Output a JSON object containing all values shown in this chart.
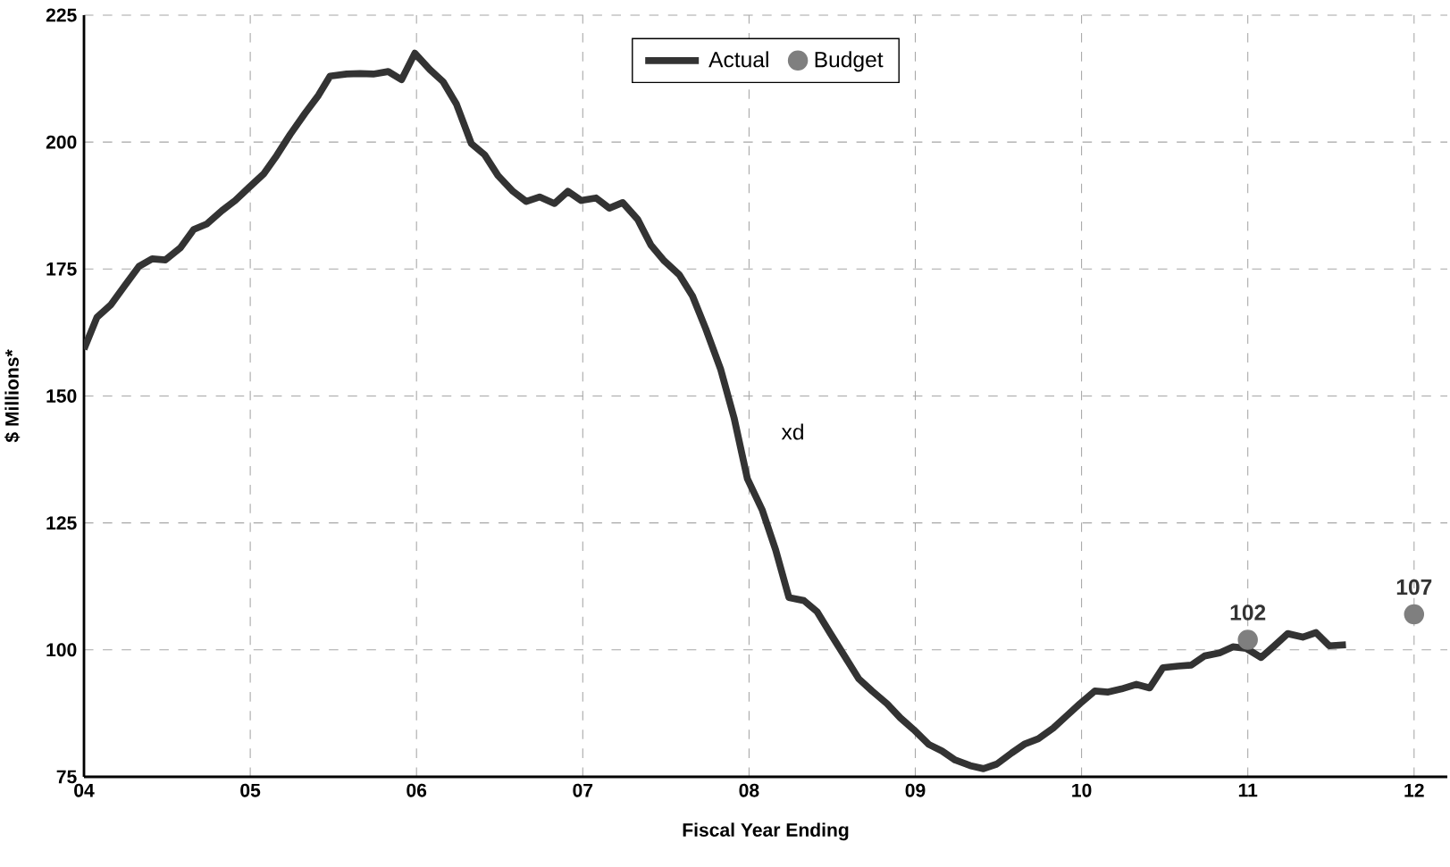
{
  "chart_data": {
    "type": "line",
    "xlabel": "Fiscal Year Ending",
    "ylabel": "$ Millions*",
    "xlim": [
      4,
      12.2
    ],
    "ylim": [
      75,
      225
    ],
    "xticks": [
      {
        "value": 4,
        "label": "04"
      },
      {
        "value": 5,
        "label": "05"
      },
      {
        "value": 6,
        "label": "06"
      },
      {
        "value": 7,
        "label": "07"
      },
      {
        "value": 8,
        "label": "08"
      },
      {
        "value": 9,
        "label": "09"
      },
      {
        "value": 10,
        "label": "10"
      },
      {
        "value": 11,
        "label": "11"
      },
      {
        "value": 12,
        "label": "12"
      }
    ],
    "yticks": [
      75,
      100,
      125,
      150,
      175,
      200,
      225
    ],
    "grid": true,
    "legend": "top",
    "annotations": [
      "xd"
    ],
    "series": [
      {
        "name": "Actual",
        "color": "#333333",
        "marker": "none",
        "x": [
          4,
          4.078,
          4.16,
          4.24,
          4.33,
          4.41,
          4.49,
          4.58,
          4.66,
          4.74,
          4.83,
          4.91,
          4.99,
          5.08,
          5.16,
          5.24,
          5.33,
          5.41,
          5.48,
          5.58,
          5.66,
          5.74,
          5.83,
          5.91,
          5.99,
          6.08,
          6.16,
          6.24,
          6.33,
          6.41,
          6.49,
          6.58,
          6.66,
          6.74,
          6.83,
          6.91,
          6.99,
          7.08,
          7.16,
          7.24,
          7.33,
          7.41,
          7.49,
          7.58,
          7.66,
          7.74,
          7.83,
          7.91,
          7.99,
          8.08,
          8.16,
          8.24,
          8.33,
          8.41,
          8.49,
          8.58,
          8.66,
          8.74,
          8.83,
          8.91,
          8.99,
          9.08,
          9.16,
          9.24,
          9.33,
          9.41,
          9.49,
          9.58,
          9.66,
          9.74,
          9.83,
          9.91,
          9.99,
          10.08,
          10.16,
          10.24,
          10.33,
          10.41,
          10.49,
          10.58,
          10.66,
          10.74,
          10.83,
          10.91,
          10.99,
          11.08,
          11.16,
          11.24,
          11.33,
          11.41,
          11.49,
          11.59
        ],
        "values": [
          159.2,
          165.5,
          167.9,
          171.5,
          175.5,
          177,
          176.8,
          179.2,
          182.8,
          183.9,
          186.5,
          188.5,
          191,
          193.7,
          197.4,
          201.5,
          205.7,
          209.2,
          213,
          213.4,
          213.5,
          213.4,
          213.9,
          212.3,
          217.5,
          214.3,
          211.9,
          207.5,
          199.7,
          197.5,
          193.4,
          190.3,
          188.3,
          189.2,
          187.9,
          190.3,
          188.5,
          189,
          187,
          188.1,
          184.8,
          179.7,
          176.6,
          173.9,
          169.7,
          163.2,
          155.2,
          145.7,
          133.7,
          127.5,
          119.7,
          110.3,
          109.7,
          107.5,
          103.2,
          98.5,
          94.3,
          91.9,
          89.4,
          86.6,
          84.3,
          81.4,
          80.1,
          78.3,
          77.2,
          76.6,
          77.5,
          79.7,
          81.5,
          82.5,
          84.6,
          87,
          89.4,
          91.9,
          91.7,
          92.3,
          93.2,
          92.5,
          96.5,
          96.8,
          97,
          98.8,
          99.4,
          100.6,
          100.3,
          98.5,
          100.8,
          103.2,
          102.5,
          103.4,
          100.8,
          101
        ]
      },
      {
        "name": "Budget",
        "type": "scatter",
        "color": "#7f7f7f",
        "marker": "circle",
        "x": [
          11,
          12
        ],
        "values": [
          102,
          107
        ],
        "value_labels": [
          "102",
          "107"
        ]
      }
    ]
  }
}
